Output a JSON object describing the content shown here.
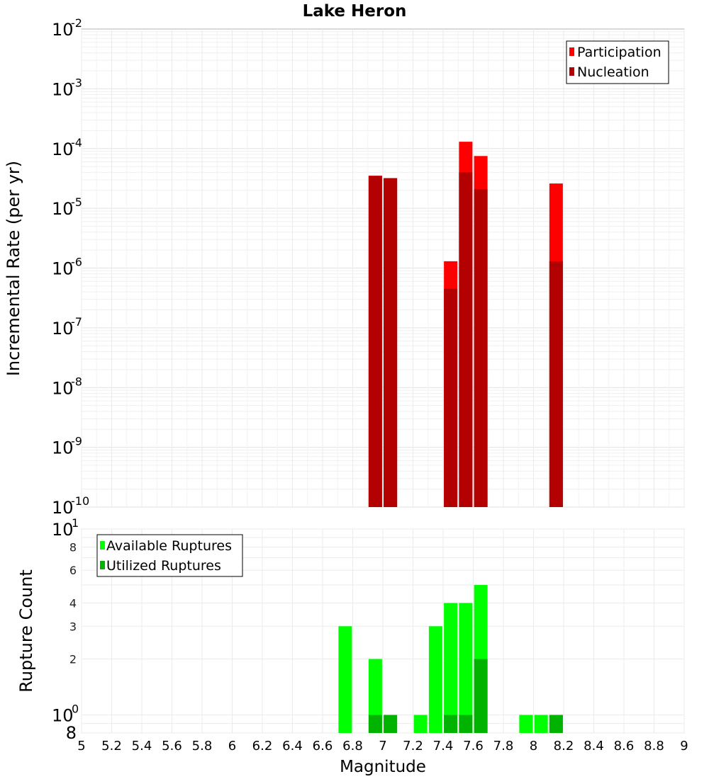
{
  "chart_data": [
    {
      "type": "bar",
      "title": "Lake Heron",
      "ylabel": "Incremental Rate (per yr)",
      "xlabel": "",
      "yscale": "log",
      "ylim": [
        1e-10,
        0.01
      ],
      "xlim": [
        5,
        9
      ],
      "y_ticks": [
        {
          "base": "10",
          "exp": "-2",
          "value": 0.01
        },
        {
          "base": "10",
          "exp": "-3",
          "value": 0.001
        },
        {
          "base": "10",
          "exp": "-4",
          "value": 0.0001
        },
        {
          "base": "10",
          "exp": "-5",
          "value": 1e-05
        },
        {
          "base": "10",
          "exp": "-6",
          "value": 1e-06
        },
        {
          "base": "10",
          "exp": "-7",
          "value": 1e-07
        },
        {
          "base": "10",
          "exp": "-8",
          "value": 1e-08
        },
        {
          "base": "10",
          "exp": "-9",
          "value": 1e-09
        },
        {
          "base": "10",
          "exp": "-10",
          "value": 1e-10
        }
      ],
      "grid": true,
      "legend_position": "top-right",
      "series": [
        {
          "name": "Participation",
          "color": "#ff0000",
          "x": [
            6.95,
            7.05,
            7.45,
            7.55,
            7.65,
            8.15
          ],
          "values": [
            3.5e-05,
            3.2e-05,
            1.3e-06,
            0.00013,
            7.5e-05,
            2.6e-05
          ]
        },
        {
          "name": "Nucleation",
          "color": "#b30000",
          "x": [
            6.95,
            7.05,
            7.45,
            7.55,
            7.65,
            8.15
          ],
          "values": [
            3.5e-05,
            3.2e-05,
            4.5e-07,
            4e-05,
            2.1e-05,
            1.3e-06
          ]
        }
      ]
    },
    {
      "type": "bar",
      "title": "",
      "ylabel": "Rupture Count",
      "xlabel": "Magnitude",
      "yscale": "log",
      "ylim": [
        0.8,
        10
      ],
      "xlim": [
        5,
        9
      ],
      "x_ticks": [
        "5",
        "5.2",
        "5.4",
        "5.6",
        "5.8",
        "6",
        "6.2",
        "6.4",
        "6.6",
        "6.8",
        "7",
        "7.2",
        "7.4",
        "7.6",
        "7.8",
        "8",
        "8.2",
        "8.4",
        "8.6",
        "8.8",
        "9"
      ],
      "y_major_ticks": [
        {
          "base": "10",
          "exp": "1",
          "value": 10
        },
        {
          "base": "10",
          "exp": "0",
          "value": 1
        }
      ],
      "y_minor_ticks": [
        {
          "label": "8",
          "value": 8
        },
        {
          "label": "6",
          "value": 6
        },
        {
          "label": "4",
          "value": 4
        },
        {
          "label": "3",
          "value": 3
        },
        {
          "label": "2",
          "value": 2
        },
        {
          "label": "8",
          "value": 0.8
        }
      ],
      "grid": true,
      "legend_position": "top-left",
      "series": [
        {
          "name": "Available Ruptures",
          "color": "#00ff00",
          "x": [
            6.75,
            6.95,
            7.05,
            7.25,
            7.35,
            7.45,
            7.55,
            7.65,
            7.95,
            8.05,
            8.15
          ],
          "values": [
            3,
            2,
            1,
            1,
            3,
            4,
            4,
            5,
            1,
            1,
            1
          ]
        },
        {
          "name": "Utilized Ruptures",
          "color": "#00b300",
          "x": [
            6.95,
            7.05,
            7.45,
            7.55,
            7.65,
            8.15
          ],
          "values": [
            1,
            1,
            1,
            1,
            2,
            1
          ]
        }
      ]
    }
  ]
}
